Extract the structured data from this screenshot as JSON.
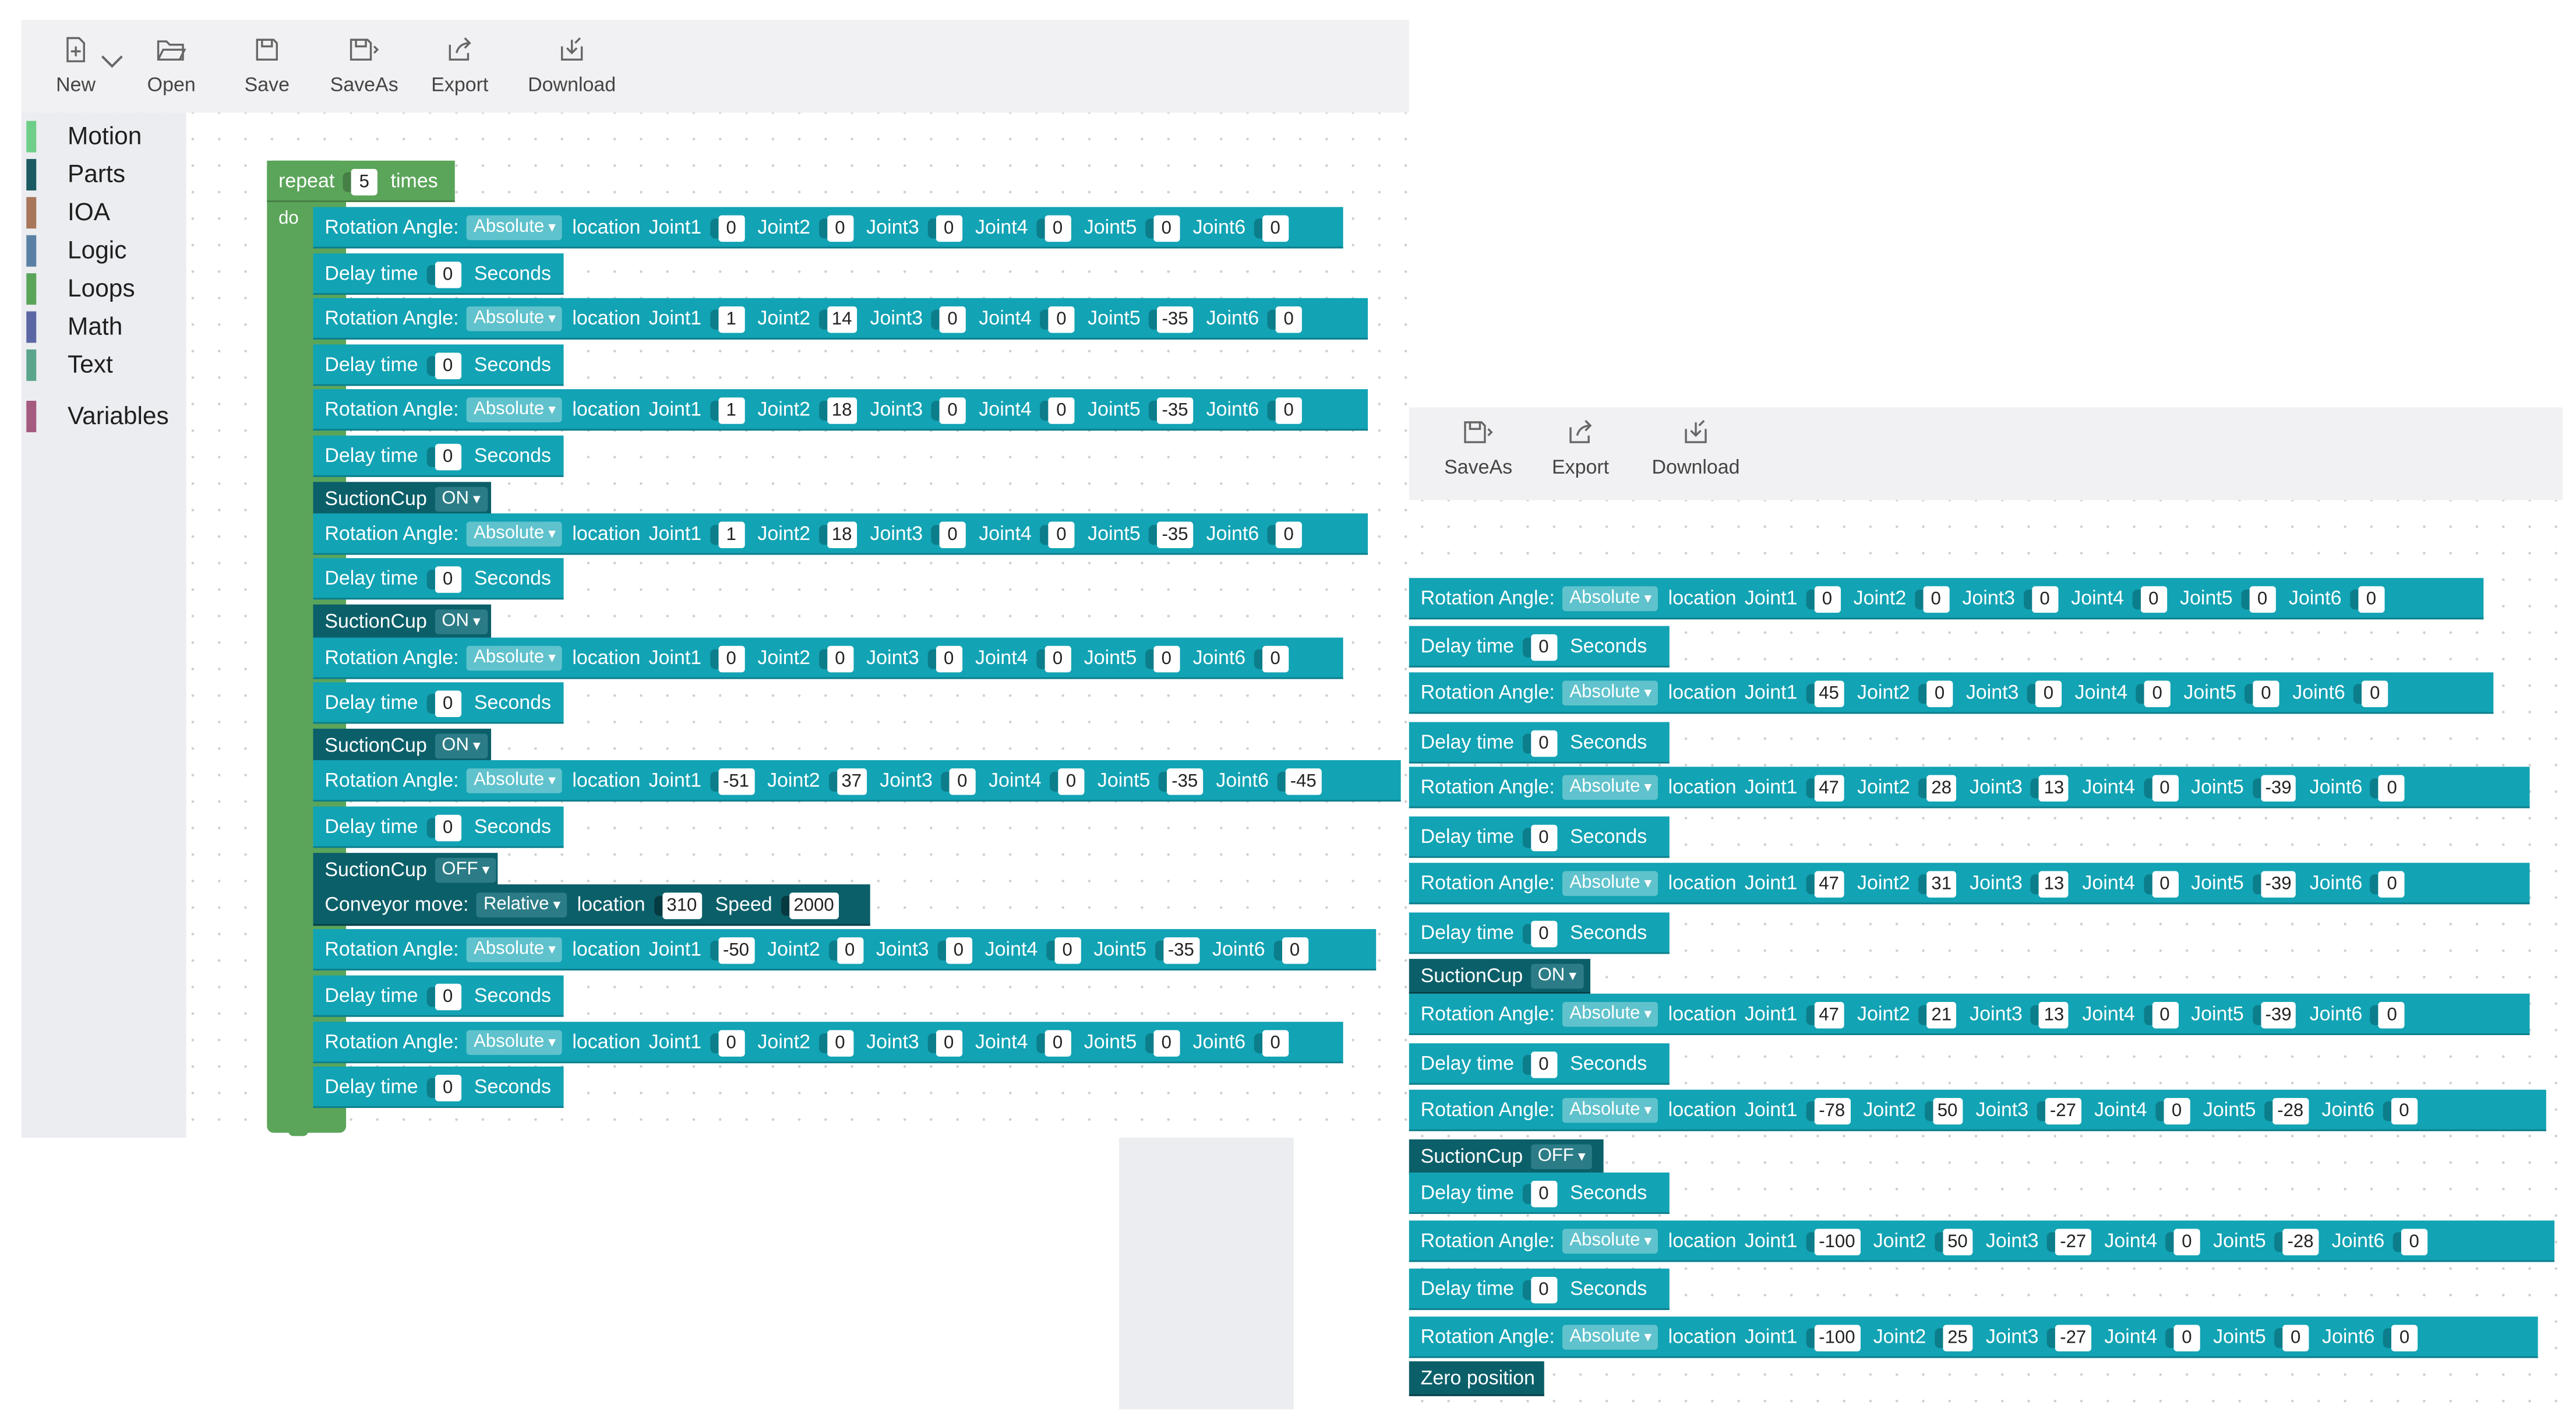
{
  "toolbar": {
    "new": "New",
    "open": "Open",
    "save": "Save",
    "saveas": "SaveAs",
    "export": "Export",
    "download": "Download"
  },
  "categories": [
    {
      "label": "Motion",
      "color": "#6fcf88"
    },
    {
      "label": "Parts",
      "color": "#1b5a63"
    },
    {
      "label": "IOA",
      "color": "#a8765a"
    },
    {
      "label": "Logic",
      "color": "#5b80a5"
    },
    {
      "label": "Loops",
      "color": "#5ba55a"
    },
    {
      "label": "Math",
      "color": "#5b67a5"
    },
    {
      "label": "Text",
      "color": "#5ba58c"
    },
    {
      "label": "Variables",
      "color": "#a55b80"
    }
  ],
  "labels": {
    "repeat": "repeat",
    "times": "times",
    "do": "do",
    "rotation": "Rotation Angle:",
    "location": "location",
    "j1": "Joint1",
    "j2": "Joint2",
    "j3": "Joint3",
    "j4": "Joint4",
    "j5": "Joint5",
    "j6": "Joint6",
    "delay": "Delay time",
    "seconds": "Seconds",
    "suction": "SuctionCup",
    "conveyor": "Conveyor move:",
    "speed": "Speed",
    "zero": "Zero position"
  },
  "left": {
    "repeat_count": "5",
    "blocks": [
      {
        "type": "rot",
        "mode": "Absolute",
        "j": [
          "0",
          "0",
          "0",
          "0",
          "0",
          "0"
        ]
      },
      {
        "type": "delay",
        "v": "0"
      },
      {
        "type": "rot",
        "mode": "Absolute",
        "j": [
          "1",
          "14",
          "0",
          "0",
          "-35",
          "0"
        ]
      },
      {
        "type": "delay",
        "v": "0"
      },
      {
        "type": "rot",
        "mode": "Absolute",
        "j": [
          "1",
          "18",
          "0",
          "0",
          "-35",
          "0"
        ]
      },
      {
        "type": "delay",
        "v": "0"
      },
      {
        "type": "suction",
        "v": "ON"
      },
      {
        "type": "rot",
        "mode": "Absolute",
        "j": [
          "1",
          "18",
          "0",
          "0",
          "-35",
          "0"
        ]
      },
      {
        "type": "delay",
        "v": "0"
      },
      {
        "type": "suction",
        "v": "ON"
      },
      {
        "type": "rot",
        "mode": "Absolute",
        "j": [
          "0",
          "0",
          "0",
          "0",
          "0",
          "0"
        ]
      },
      {
        "type": "delay",
        "v": "0"
      },
      {
        "type": "suction",
        "v": "ON"
      },
      {
        "type": "rot",
        "mode": "Absolute",
        "j": [
          "-51",
          "37",
          "0",
          "0",
          "-35",
          "-45"
        ]
      },
      {
        "type": "delay",
        "v": "0"
      },
      {
        "type": "suction",
        "v": "OFF"
      },
      {
        "type": "conveyor",
        "mode": "Relative",
        "loc": "310",
        "speed": "2000"
      },
      {
        "type": "rot",
        "mode": "Absolute",
        "j": [
          "-50",
          "0",
          "0",
          "0",
          "-35",
          "0"
        ]
      },
      {
        "type": "delay",
        "v": "0"
      },
      {
        "type": "rot",
        "mode": "Absolute",
        "j": [
          "0",
          "0",
          "0",
          "0",
          "0",
          "0"
        ]
      },
      {
        "type": "delay",
        "v": "0"
      }
    ]
  },
  "right": {
    "blocks": [
      {
        "type": "rot",
        "mode": "Absolute",
        "j": [
          "0",
          "0",
          "0",
          "0",
          "0",
          "0"
        ]
      },
      {
        "type": "delay",
        "v": "0"
      },
      {
        "type": "rot",
        "mode": "Absolute",
        "j": [
          "45",
          "0",
          "0",
          "0",
          "0",
          "0"
        ]
      },
      {
        "type": "delay",
        "v": "0"
      },
      {
        "type": "rot",
        "mode": "Absolute",
        "j": [
          "47",
          "28",
          "13",
          "0",
          "-39",
          "0"
        ]
      },
      {
        "type": "delay",
        "v": "0"
      },
      {
        "type": "rot",
        "mode": "Absolute",
        "j": [
          "47",
          "31",
          "13",
          "0",
          "-39",
          "0"
        ]
      },
      {
        "type": "delay",
        "v": "0"
      },
      {
        "type": "suction",
        "v": "ON"
      },
      {
        "type": "rot",
        "mode": "Absolute",
        "j": [
          "47",
          "21",
          "13",
          "0",
          "-39",
          "0"
        ]
      },
      {
        "type": "delay",
        "v": "0"
      },
      {
        "type": "rot",
        "mode": "Absolute",
        "j": [
          "-78",
          "50",
          "-27",
          "0",
          "-28",
          "0"
        ]
      },
      {
        "type": "suction",
        "v": "OFF"
      },
      {
        "type": "delay",
        "v": "0"
      },
      {
        "type": "rot",
        "mode": "Absolute",
        "j": [
          "-100",
          "50",
          "-27",
          "0",
          "-28",
          "0"
        ]
      },
      {
        "type": "delay",
        "v": "0"
      },
      {
        "type": "rot",
        "mode": "Absolute",
        "j": [
          "-100",
          "25",
          "-27",
          "0",
          "0",
          "0"
        ]
      },
      {
        "type": "zero"
      }
    ]
  }
}
